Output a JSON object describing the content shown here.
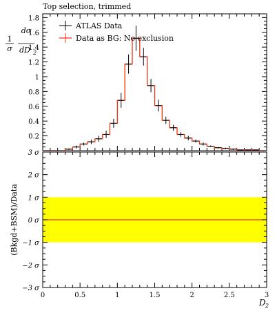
{
  "chart_data": [
    {
      "type": "line",
      "panel": "main",
      "title": "Top selection, trimmed",
      "ylabel": "1/σ dσ/dD2",
      "xlim": [
        0,
        3
      ],
      "ylim": [
        0,
        1.85
      ],
      "yticks": [
        "0.2",
        "0.4",
        "0.6",
        "0.8",
        "1",
        "1.2",
        "1.4",
        "1.6",
        "1.8"
      ],
      "ytick_values": [
        0.2,
        0.4,
        0.6,
        0.8,
        1.0,
        1.2,
        1.4,
        1.6,
        1.8
      ],
      "bin_edges": [
        0,
        0.1,
        0.2,
        0.3,
        0.4,
        0.5,
        0.6,
        0.7,
        0.8,
        0.9,
        1.0,
        1.1,
        1.2,
        1.3,
        1.4,
        1.5,
        1.6,
        1.7,
        1.8,
        1.9,
        2.0,
        2.1,
        2.2,
        2.3,
        2.4,
        2.5,
        2.6,
        2.7,
        2.8,
        2.9,
        3.0
      ],
      "legend_position": "top-left",
      "series": [
        {
          "name": "ATLAS Data",
          "color": "#000000",
          "style": "points-with-errorbars",
          "values": [
            0.0,
            0.0,
            0.0,
            0.02,
            0.05,
            0.09,
            0.12,
            0.16,
            0.22,
            0.37,
            0.68,
            1.17,
            1.52,
            1.27,
            0.88,
            0.61,
            0.41,
            0.31,
            0.22,
            0.17,
            0.13,
            0.09,
            0.06,
            0.04,
            0.03,
            0.02,
            0.01,
            0.01,
            0.01,
            0.0
          ],
          "errors": [
            0.0,
            0.0,
            0.0,
            0.01,
            0.02,
            0.02,
            0.03,
            0.04,
            0.05,
            0.06,
            0.1,
            0.13,
            0.17,
            0.12,
            0.09,
            0.08,
            0.05,
            0.04,
            0.03,
            0.03,
            0.02,
            0.02,
            0.01,
            0.01,
            0.01,
            0.01,
            0.0,
            0.0,
            0.0,
            0.0
          ]
        },
        {
          "name": "Data as BG: No exclusion",
          "color": "#ee3311",
          "style": "step",
          "values": [
            0.0,
            0.0,
            0.0,
            0.02,
            0.05,
            0.09,
            0.12,
            0.16,
            0.22,
            0.37,
            0.68,
            1.17,
            1.52,
            1.27,
            0.88,
            0.61,
            0.41,
            0.31,
            0.22,
            0.17,
            0.13,
            0.09,
            0.06,
            0.04,
            0.03,
            0.02,
            0.01,
            0.01,
            0.01,
            0.0
          ]
        }
      ]
    },
    {
      "type": "line",
      "panel": "ratio",
      "ylabel": "(Bkgd+BSM)/Data",
      "xlabel": "D2",
      "xlim": [
        0,
        3
      ],
      "ylim": [
        -3,
        3
      ],
      "xticks": [
        "0",
        "0.5",
        "1",
        "1.5",
        "2",
        "2.5",
        "3"
      ],
      "xtick_values": [
        0,
        0.5,
        1,
        1.5,
        2,
        2.5,
        3
      ],
      "yticks": [
        "−3 σ",
        "−2 σ",
        "−1 σ",
        "0 σ",
        "1 σ",
        "2 σ",
        "3 σ"
      ],
      "ytick_values": [
        -3,
        -2,
        -1,
        0,
        1,
        2,
        3
      ],
      "band": {
        "low": -1,
        "high": 1,
        "color": "#ffff00"
      },
      "line": {
        "value": 0,
        "color": "#ee3311"
      }
    }
  ]
}
